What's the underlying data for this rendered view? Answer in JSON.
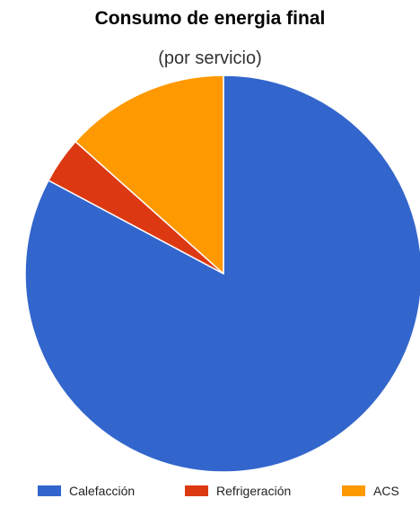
{
  "chart_data": {
    "type": "pie",
    "title": "Consumo de energia final",
    "subtitle": "(por servicio)",
    "slices": [
      {
        "label": "Calefacción",
        "value": 82.8,
        "color": "#3366cc"
      },
      {
        "label": "Refrigeración",
        "value": 3.8,
        "color": "#dc3912"
      },
      {
        "label": "ACS",
        "value": 13.4,
        "color": "#ff9900"
      }
    ],
    "legend_position": "bottom"
  }
}
